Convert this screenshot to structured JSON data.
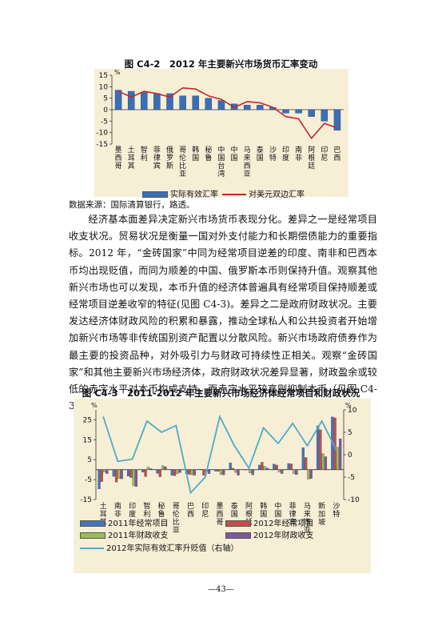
{
  "figure1": {
    "title": "图 C4-2　2012 年主要新兴市场货币汇率变动",
    "unit": "%",
    "legend_bar": "实际有效汇率",
    "legend_line": "对美元双边汇率",
    "source": "数据来源：国际清算银行，路透。"
  },
  "paragraph": "经济基本面差异决定新兴市场货币表现分化。差异之一是经常项目收支状况。贸易状况是衡量一国对外支付能力和长期偿债能力的重要指标。2012 年，“金砖国家”中同为经常项目逆差的印度、南非和巴西本币均出现贬值，而同为顺差的中国、俄罗斯本币则保持升值。观察其他新兴市场也可以发现，本币升值的经济体普遍具有经常项目保持顺差或经常项目逆差收窄的特征(见图 C4-3)。差异之二是政府财政状况。主要发达经济体财政风险的积累和暴露，推动全球私人和公共投资者开始增加新兴市场等非传统国别资产配置以分散风险。新兴市场政府债券作为最主要的投资品种，对外吸引力与财政可持续性正相关。观察“金砖国家”和其他主要新兴市场经济体，政府财政状况差异显著，财政盈余或较低的赤字水平对本币构成支持，而赤字水平较高则抑制本币（见图 C4-3）。",
  "figure2": {
    "title": "图 C4-3　2011-2012 年主要新兴市场经济体经常项目和财政状况",
    "unit_left": "%",
    "unit_right": "%",
    "legend": [
      "2011年经常项目",
      "2012年经常项目",
      "2011年财政收支",
      "2012年财政收支",
      "2012年实际有效汇率升贬值（右轴）"
    ]
  },
  "page_number": "—43—",
  "chart_data": [
    {
      "type": "bar",
      "title": "图 C4-2　2012 年主要新兴市场货币汇率变动",
      "ylabel": "%",
      "ylim": [
        -15,
        15
      ],
      "yticks": [
        -15,
        -10,
        -5,
        0,
        5,
        10,
        15
      ],
      "categories": [
        "墨西哥",
        "土耳其",
        "智利",
        "菲律宾",
        "俄罗斯",
        "哥伦比亚",
        "韩国",
        "秘鲁",
        "中国台湾",
        "中国",
        "马来西亚",
        "泰国",
        "沙特",
        "印度",
        "南非",
        "阿根廷",
        "印尼",
        "巴西"
      ],
      "series": [
        {
          "name": "实际有效汇率",
          "kind": "bar",
          "color": "#3a6fb5",
          "values": [
            8.5,
            8,
            7.5,
            7,
            7,
            6,
            6,
            5,
            4,
            2.5,
            2,
            2,
            1,
            -1.5,
            -1.5,
            -3,
            -5,
            -9
          ]
        },
        {
          "name": "对美元双边汇率",
          "kind": "line",
          "color": "#c0282d",
          "values": [
            8,
            5.5,
            8,
            7,
            5.5,
            9.5,
            9,
            6,
            4.5,
            1,
            3.5,
            3,
            1,
            -3,
            -4,
            -12.5,
            -6,
            -8
          ]
        }
      ],
      "legend": "bottom",
      "grid": false
    },
    {
      "type": "bar",
      "title": "图 C4-3　2011-2012 年主要新兴市场经济体经常项目和财政状况",
      "ylim": [
        -15,
        30
      ],
      "yticks": [
        -15,
        -5,
        5,
        15,
        25
      ],
      "y2lim": [
        -10,
        10
      ],
      "y2ticks": [
        -10,
        -5,
        0,
        5,
        10
      ],
      "categories": [
        "土耳其",
        "南非",
        "印度",
        "智利",
        "秘鲁",
        "哥伦比亚",
        "巴西",
        "印尼",
        "墨西哥",
        "泰国",
        "阿根廷",
        "韩国",
        "中国",
        "菲律宾",
        "马来西亚",
        "新加坡",
        "沙特"
      ],
      "series": [
        {
          "name": "2011年经常项目",
          "kind": "bar",
          "color": "#4a72b8",
          "values": [
            -9.7,
            -3.4,
            -3.3,
            -1.3,
            -1.9,
            -2.9,
            -2.1,
            0.2,
            -0.8,
            3.4,
            -0.1,
            2.3,
            2.8,
            3.1,
            11.0,
            22.0,
            26.5
          ]
        },
        {
          "name": "2012年经常项目",
          "kind": "bar",
          "color": "#c0504d",
          "values": [
            -6.0,
            -6.3,
            -4.0,
            -3.5,
            -3.6,
            -3.1,
            -2.4,
            -2.8,
            -0.8,
            0.7,
            0.1,
            3.7,
            2.3,
            2.9,
            6.1,
            20.0,
            26.0
          ]
        },
        {
          "name": "2011年财政收支",
          "kind": "bar",
          "color": "#9bbb59",
          "values": [
            -1.3,
            -4.5,
            -8.0,
            1.3,
            2.0,
            -2.0,
            -2.6,
            -1.1,
            -2.5,
            -1.4,
            -1.7,
            1.7,
            -1.2,
            -2.0,
            -4.8,
            8.0,
            11.2
          ]
        },
        {
          "name": "2012年财政收支",
          "kind": "bar",
          "color": "#7a5a9c",
          "values": [
            -2.0,
            -4.6,
            -8.5,
            0.5,
            1.5,
            -1.5,
            -2.8,
            -2.0,
            -2.6,
            -2.8,
            -2.6,
            0.8,
            -2.0,
            -2.5,
            -4.5,
            6.5,
            15.5
          ]
        },
        {
          "name": "2012年实际有效汇率升贬值（右轴）",
          "kind": "line",
          "axis": "right",
          "color": "#4bacc6",
          "values": [
            8.5,
            -1.5,
            -1.0,
            7.5,
            5.0,
            6.5,
            -8.5,
            -5.0,
            8.5,
            2.0,
            -3.0,
            6.0,
            2.5,
            7.0,
            2.0,
            7.5,
            1.0
          ]
        }
      ],
      "legend": "bottom",
      "grid": false
    }
  ]
}
